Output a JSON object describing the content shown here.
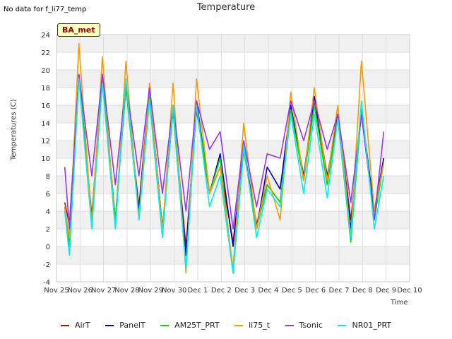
{
  "header": {
    "no_data_note": "No data for f_li77_temp",
    "title": "Temperature",
    "badge": "BA_met"
  },
  "chart_data": {
    "type": "line",
    "title": "Temperature",
    "xlabel": "Time",
    "ylabel": "Temperatures (C)",
    "ylim": [
      -4,
      24
    ],
    "yticks": [
      -4,
      -2,
      0,
      2,
      4,
      6,
      8,
      10,
      12,
      14,
      16,
      18,
      20,
      22,
      24
    ],
    "x_ticks": [
      "Nov 25",
      "Nov 26",
      "Nov 27",
      "Nov 28",
      "Nov 29",
      "Nov 30",
      "Dec 1",
      "Dec 2",
      "Dec 3",
      "Dec 4",
      "Dec 5",
      "Dec 6",
      "Dec 7",
      "Dec 8",
      "Dec 9",
      "Dec 10"
    ],
    "x_range_days": [
      0,
      15
    ],
    "x_day_offsets": [
      0.35,
      0.55,
      0.95,
      1.5,
      1.95,
      2.5,
      2.95,
      3.5,
      3.95,
      4.5,
      4.95,
      5.5,
      5.95,
      6.5,
      6.95,
      7.5,
      7.95,
      8.5,
      8.95,
      9.5,
      9.95,
      10.5,
      10.95,
      11.5,
      11.95,
      12.5,
      12.95,
      13.5,
      13.9
    ],
    "grid": true,
    "legend_position": "bottom",
    "series": [
      {
        "name": "AirT",
        "color": "#dd0000",
        "values": [
          5,
          2.5,
          19.5,
          3.5,
          19,
          3,
          18,
          4.5,
          18,
          2,
          15.5,
          0,
          15.5,
          6,
          9,
          0.5,
          11,
          2.5,
          7,
          5,
          16,
          7.5,
          16.5,
          7,
          15,
          3,
          15,
          4,
          10
        ]
      },
      {
        "name": "PanelT",
        "color": "#0000cc",
        "values": [
          4.5,
          0,
          19.5,
          3,
          19.5,
          3,
          18.5,
          4,
          18,
          2,
          15.5,
          -1,
          16.5,
          6,
          10.5,
          0,
          11.5,
          2,
          9,
          6.5,
          16,
          8,
          17,
          8,
          14.5,
          2,
          15.5,
          4,
          10
        ]
      },
      {
        "name": "AM25T_PRT",
        "color": "#00dd00",
        "values": [
          4,
          0,
          19.5,
          3,
          19.5,
          3,
          18,
          3.5,
          17.5,
          2,
          15.5,
          -2.5,
          16,
          6,
          10,
          -3,
          11,
          2,
          7,
          5,
          15.5,
          7.5,
          16,
          7,
          14.5,
          0.5,
          15.5,
          3,
          9.5
        ]
      },
      {
        "name": "li75_t",
        "color": "#ff9900",
        "values": [
          4.5,
          1,
          23,
          2.5,
          21.5,
          2,
          21,
          3,
          18.5,
          1.5,
          18.5,
          -3,
          19,
          6,
          9,
          -2.5,
          14,
          2,
          8,
          3,
          17.5,
          7.5,
          18,
          7.5,
          16,
          1,
          21,
          4,
          9.5
        ]
      },
      {
        "name": "Tsonic",
        "color": "#9933ff",
        "values": [
          9,
          2,
          19.5,
          8,
          19.5,
          7,
          18.5,
          8,
          18,
          6,
          16,
          4,
          16.5,
          11,
          13,
          2,
          12,
          4.5,
          10.5,
          10,
          16.5,
          12,
          16.5,
          11,
          15,
          5,
          15,
          3,
          13
        ]
      },
      {
        "name": "NR01_PRT",
        "color": "#00eeee",
        "values": [
          4,
          -1,
          19,
          2,
          18.5,
          2,
          19,
          3,
          16.5,
          1,
          16,
          -2.5,
          16,
          4.5,
          8,
          -3,
          11.5,
          1,
          6.5,
          4.5,
          15,
          6,
          15,
          5.5,
          14.5,
          1,
          16.5,
          2,
          8
        ]
      }
    ]
  }
}
